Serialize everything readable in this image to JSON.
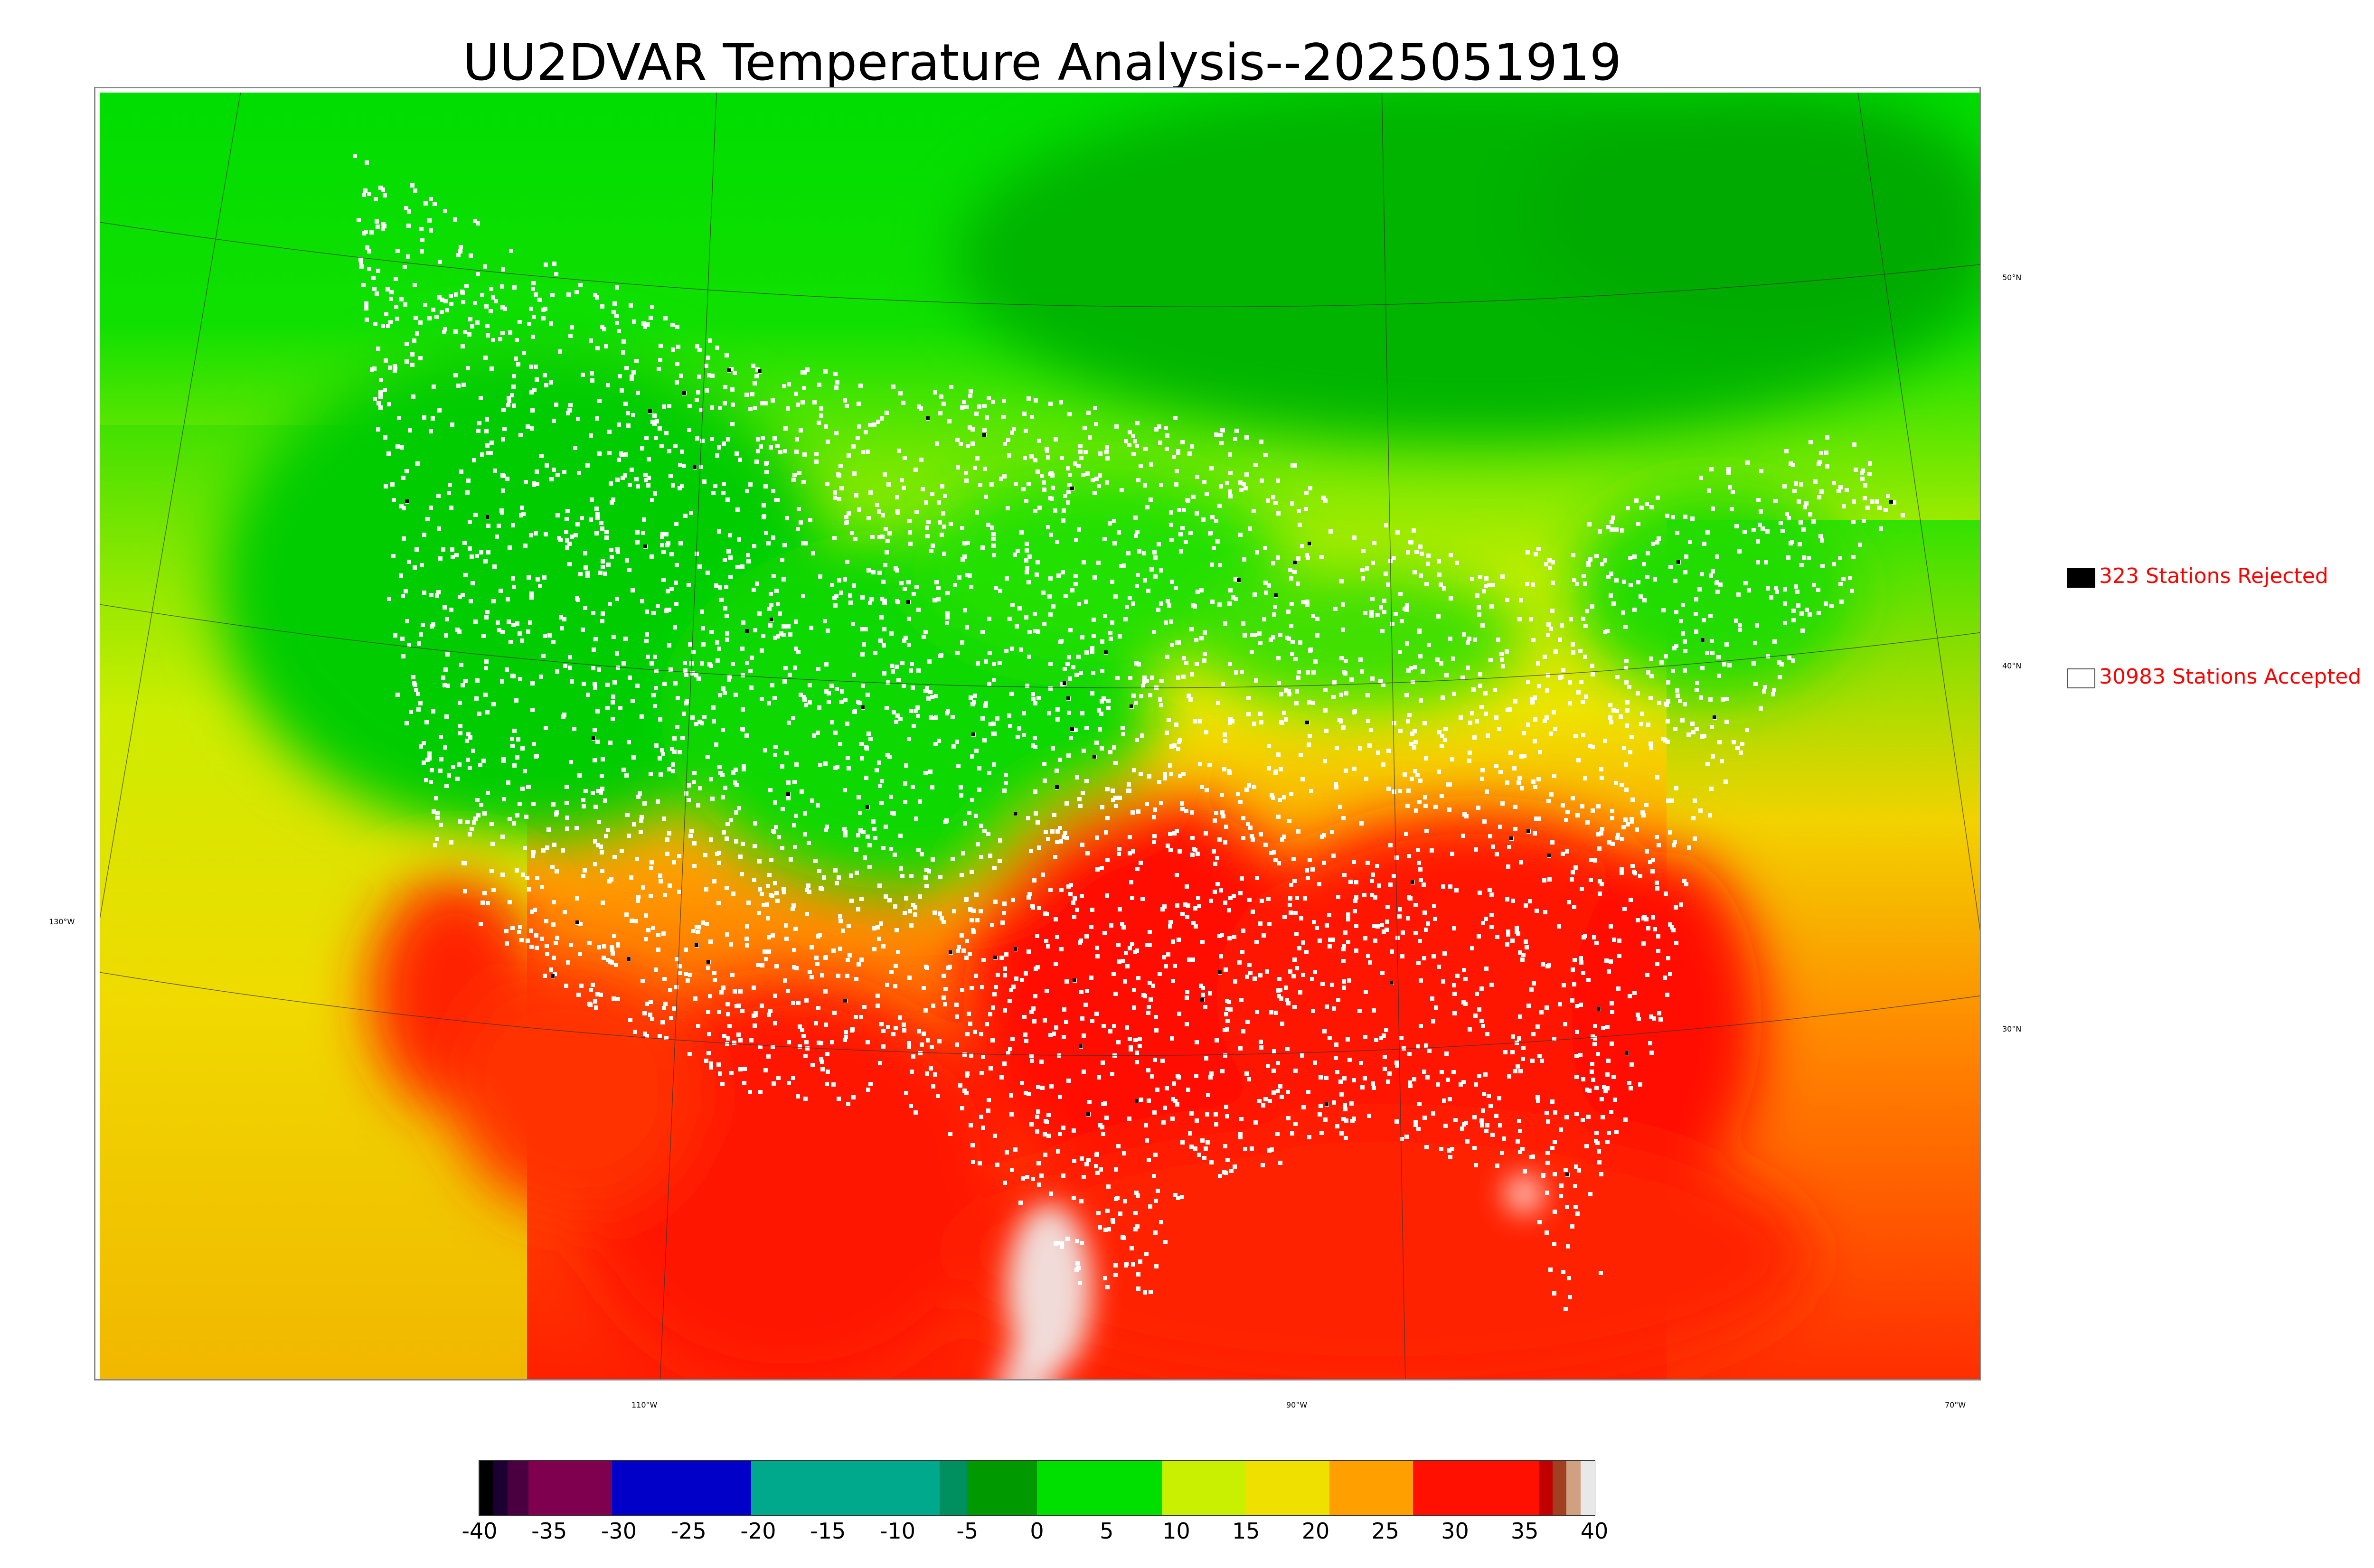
{
  "title": "UU2DVAR Temperature Analysis--2025051919",
  "lat_labels": [
    "50°N",
    "40°N",
    "30°N"
  ],
  "lon_labels": [
    "130°W",
    "110°W",
    "90°W",
    "70°W"
  ],
  "legend": {
    "rejected": {
      "label": "323 Stations Rejected",
      "color": "#000000"
    },
    "accepted": {
      "label": "30983 Stations Accepted",
      "color": "#ffffff"
    }
  },
  "colorbar": {
    "ticks": [
      "-40",
      "-35",
      "-30",
      "-25",
      "-20",
      "-15",
      "-10",
      "-5",
      "0",
      "5",
      "10",
      "15",
      "20",
      "25",
      "30",
      "35",
      "40"
    ],
    "tick_values": [
      -40,
      -35,
      -30,
      -25,
      -20,
      -15,
      -10,
      -5,
      0,
      5,
      10,
      15,
      20,
      25,
      30,
      35,
      40
    ],
    "range": [
      -40,
      40
    ],
    "stops": [
      {
        "from": -40,
        "to": -39,
        "color": "#000000"
      },
      {
        "from": -39,
        "to": -38,
        "color": "#1a0033"
      },
      {
        "from": -38,
        "to": -36.5,
        "color": "#4a0040"
      },
      {
        "from": -36.5,
        "to": -30.5,
        "color": "#800050"
      },
      {
        "from": -30.5,
        "to": -20.5,
        "color": "#0000c8"
      },
      {
        "from": -20.5,
        "to": -7,
        "color": "#00a88c"
      },
      {
        "from": -7,
        "to": -5,
        "color": "#009060"
      },
      {
        "from": -5,
        "to": 0,
        "color": "#009a00"
      },
      {
        "from": 0,
        "to": 9,
        "color": "#00e000"
      },
      {
        "from": 9,
        "to": 15,
        "color": "#c8f000"
      },
      {
        "from": 15,
        "to": 21,
        "color": "#f0e000"
      },
      {
        "from": 21,
        "to": 27,
        "color": "#ffa000"
      },
      {
        "from": 27,
        "to": 36,
        "color": "#ff1000"
      },
      {
        "from": 36,
        "to": 37,
        "color": "#c00000"
      },
      {
        "from": 37,
        "to": 38,
        "color": "#a04020"
      },
      {
        "from": 38,
        "to": 39,
        "color": "#d0a080"
      },
      {
        "from": 39,
        "to": 40,
        "color": "#e8e8e8"
      }
    ]
  }
}
